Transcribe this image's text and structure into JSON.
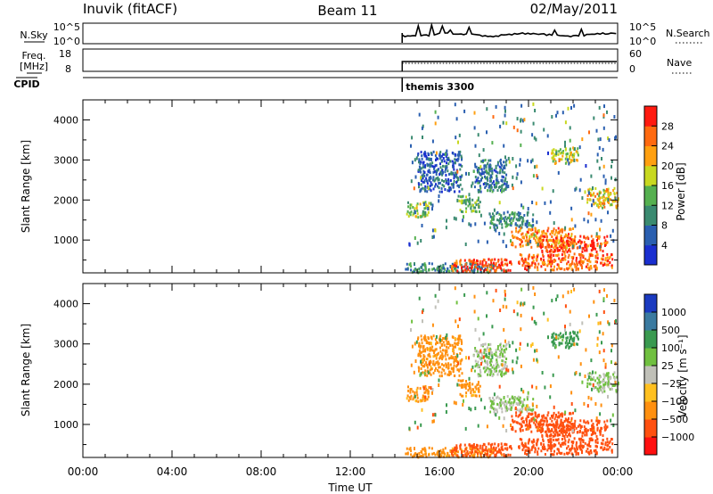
{
  "header": {
    "station": "Inuvik (fitACF)",
    "beam": "Beam 11",
    "date": "02/May/2011"
  },
  "noise_panel": {
    "left_label": "N.Sky",
    "left_ticks": [
      "10^5",
      "10^0"
    ],
    "right_label": "N.Search",
    "right_ticks": [
      "10^5",
      "10^0"
    ]
  },
  "freq_panel": {
    "left_label": "Freq.",
    "left_unit": "[MHz]",
    "left_ticks": [
      "18",
      "8"
    ],
    "right_label": "Nave",
    "right_ticks": [
      "60",
      "0"
    ]
  },
  "cpid_panel": {
    "label": "CPID",
    "program": "themis 3300",
    "start_time": "14:20"
  },
  "power_panel": {
    "ylabel": "Slant Range [km]",
    "yticks": [
      "1000",
      "2000",
      "3000",
      "4000"
    ],
    "colorbar_label": "Power [dB]",
    "colorbar_ticks": [
      "4",
      "8",
      "12",
      "16",
      "20",
      "24",
      "28"
    ],
    "colors": [
      "#1a2fd0",
      "#2a5fb0",
      "#3a8a70",
      "#55b050",
      "#c8d820",
      "#ffa010",
      "#ff6a10",
      "#ff1a10"
    ]
  },
  "velocity_panel": {
    "ylabel": "Slant Range [km]",
    "yticks": [
      "1000",
      "2000",
      "3000",
      "4000"
    ],
    "colorbar_label": "Velocity [m s⁻¹]",
    "colorbar_ticks": [
      "1000",
      "500",
      "100",
      "25",
      "−25",
      "−100",
      "−500",
      "−1000"
    ],
    "colors": [
      "#1a3ac0",
      "#3a7aa0",
      "#3a9a50",
      "#70c040",
      "#c0c0b8",
      "#ffc020",
      "#ff9010",
      "#ff5010",
      "#ff1010"
    ]
  },
  "time_axis": {
    "label": "Time UT",
    "ticks": [
      "00:00",
      "04:00",
      "08:00",
      "12:00",
      "16:00",
      "20:00",
      "00:00"
    ]
  },
  "chart_data": {
    "type": "heatmap",
    "title": "Inuvik (fitACF) Beam 11 02/May/2011",
    "x_label": "Time UT",
    "x_range_hours": [
      0,
      24
    ],
    "data_start_hour": 14.33,
    "y_label": "Slant Range [km]",
    "y_range_km": [
      180,
      4500
    ],
    "power_range_db": [
      0,
      30
    ],
    "velocity_range_ms": [
      -1000,
      1000
    ],
    "scatter_regions": [
      {
        "t": [
          14.4,
          18.8
        ],
        "r": [
          180,
          420
        ],
        "power_db": 10,
        "velocity_ms": -100
      },
      {
        "t": [
          16.5,
          19.2
        ],
        "r": [
          200,
          520
        ],
        "power_db": 28,
        "velocity_ms": -500
      },
      {
        "t": [
          19.5,
          23.8
        ],
        "r": [
          250,
          650
        ],
        "power_db": 26,
        "velocity_ms": -500
      },
      {
        "t": [
          14.5,
          15.5
        ],
        "r": [
          1550,
          1950
        ],
        "power_db": 16,
        "velocity_ms": -100
      },
      {
        "t": [
          16.8,
          17.8
        ],
        "r": [
          1700,
          2100
        ],
        "power_db": 14,
        "velocity_ms": -100
      },
      {
        "t": [
          18.2,
          20.2
        ],
        "r": [
          1300,
          1700
        ],
        "power_db": 10,
        "velocity_ms": 25
      },
      {
        "t": [
          19.2,
          22.0
        ],
        "r": [
          800,
          1300
        ],
        "power_db": 24,
        "velocity_ms": -500
      },
      {
        "t": [
          20.5,
          23.5
        ],
        "r": [
          700,
          1100
        ],
        "power_db": 28,
        "velocity_ms": -500
      },
      {
        "t": [
          22.6,
          24.0
        ],
        "r": [
          1800,
          2300
        ],
        "power_db": 20,
        "velocity_ms": 25
      },
      {
        "t": [
          21.0,
          22.2
        ],
        "r": [
          2900,
          3300
        ],
        "power_db": 18,
        "velocity_ms": 100
      },
      {
        "t": [
          15.0,
          17.0
        ],
        "r": [
          2200,
          3200
        ],
        "power_db": 6,
        "velocity_ms": -100
      },
      {
        "t": [
          17.5,
          19.0
        ],
        "r": [
          2200,
          3000
        ],
        "power_db": 8,
        "velocity_ms": 25
      }
    ]
  }
}
